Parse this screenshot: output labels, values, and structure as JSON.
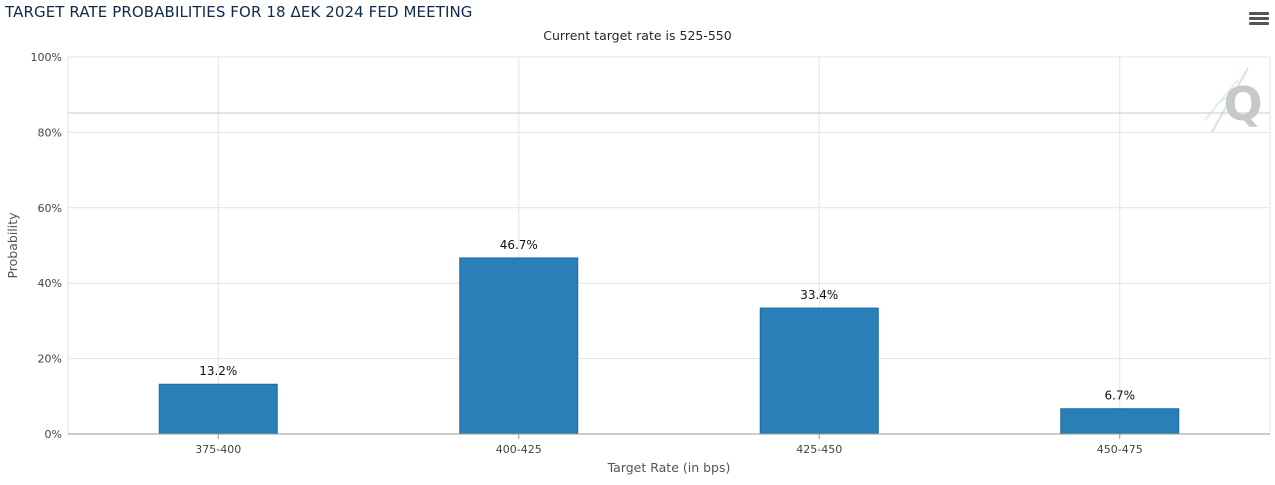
{
  "chart_data": {
    "type": "bar",
    "title": "TARGET RATE PROBABILITIES FOR 18 ΔΕΚ 2024 FED MEETING",
    "subtitle": "Current target rate is 525-550",
    "xlabel": "Target Rate (in bps)",
    "ylabel": "Probability",
    "categories": [
      "375-400",
      "400-425",
      "425-450",
      "450-475"
    ],
    "values": [
      13.2,
      46.7,
      33.4,
      6.7
    ],
    "value_labels": [
      "13.2%",
      "46.7%",
      "33.4%",
      "6.7%"
    ],
    "ylim": [
      0,
      100
    ],
    "yticks": [
      "0%",
      "20%",
      "40%",
      "60%",
      "80%",
      "100%"
    ],
    "grid": true,
    "bar_color": "#2a7fb8"
  },
  "toolbar": {
    "menu_icon": "hamburger-menu-icon"
  },
  "watermark": {
    "letter": "Q"
  }
}
